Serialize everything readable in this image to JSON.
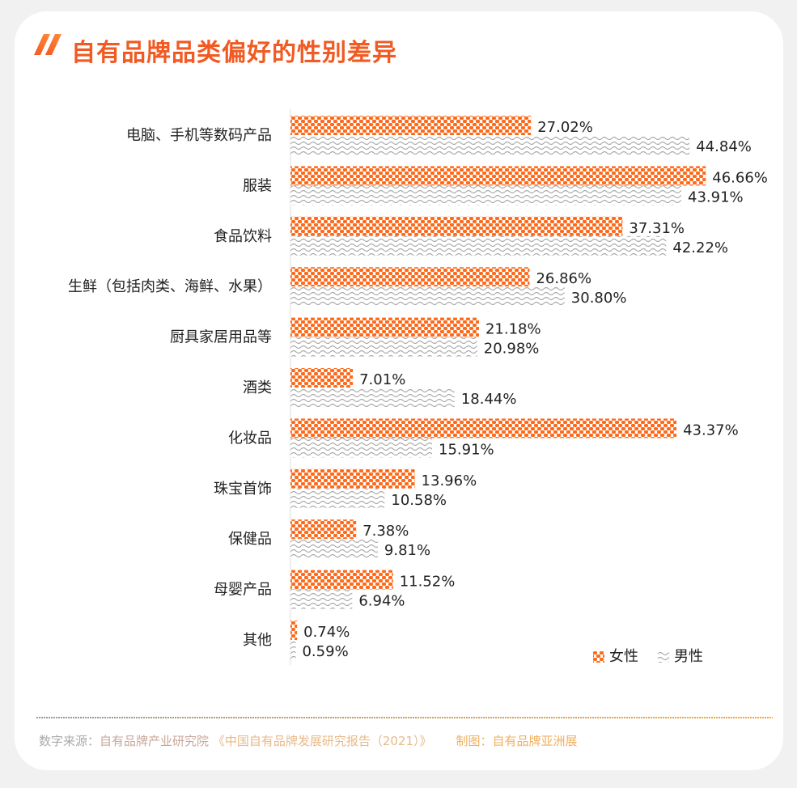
{
  "title": "自有品牌品类偏好的性别差异",
  "footer": {
    "source_label": "数字来源：",
    "source": "自有品牌产业研究院",
    "report": "《中国自有品牌发展研究报告（2021）》",
    "credit": "制图：自有品牌亚洲展"
  },
  "colors": {
    "female": "#ff6a1a",
    "male": "#b0b0b0",
    "title": "#f15a22"
  },
  "chart_data": {
    "type": "bar",
    "orientation": "horizontal",
    "title": "自有品牌品类偏好的性别差异",
    "categories": [
      "电脑、手机等数码产品",
      "服装",
      "食品饮料",
      "生鲜（包括肉类、海鲜、水果）",
      "厨具家居用品等",
      "酒类",
      "化妆品",
      "珠宝首饰",
      "保健品",
      "母婴产品",
      "其他"
    ],
    "series": [
      {
        "name": "女性",
        "values": [
          27.02,
          46.66,
          37.31,
          26.86,
          21.18,
          7.01,
          43.37,
          13.96,
          7.38,
          11.52,
          0.74
        ],
        "labels": [
          "27.02%",
          "46.66%",
          "37.31%",
          "26.86%",
          "21.18%",
          "7.01%",
          "43.37%",
          "13.96%",
          "7.38%",
          "11.52%",
          "0.74%"
        ]
      },
      {
        "name": "男性",
        "values": [
          44.84,
          43.91,
          42.22,
          30.8,
          20.98,
          18.44,
          15.91,
          10.58,
          9.81,
          6.94,
          0.59
        ],
        "labels": [
          "44.84%",
          "43.91%",
          "42.22%",
          "30.80%",
          "20.98%",
          "18.44%",
          "15.91%",
          "10.58%",
          "9.81%",
          "6.94%",
          "0.59%"
        ]
      }
    ],
    "xlim": [
      0,
      50
    ],
    "legend": "bottom-right",
    "grid": false
  }
}
